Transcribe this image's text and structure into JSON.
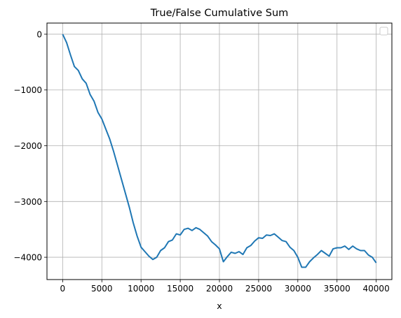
{
  "chart_data": {
    "type": "line",
    "title": "True/False Cumulative Sum",
    "xlabel": "x",
    "ylabel": "",
    "xlim": [
      -2000,
      42000
    ],
    "ylim": [
      -4400,
      200
    ],
    "xticks": [
      0,
      5000,
      10000,
      15000,
      20000,
      25000,
      30000,
      35000,
      40000
    ],
    "yticks": [
      0,
      -1000,
      -2000,
      -3000,
      -4000
    ],
    "grid": true,
    "legend": {
      "placement": "top-right",
      "entries": []
    },
    "colors": {
      "line": "#1f77b4",
      "grid": "#b0b0b0",
      "axes": "#000000"
    },
    "series": [
      {
        "x": [
          0,
          500,
          1000,
          1500,
          2000,
          2500,
          3000,
          3500,
          4000,
          4500,
          5000,
          5500,
          6000,
          6500,
          7000,
          7500,
          8000,
          8500,
          9000,
          9500,
          10000,
          10500,
          11000,
          11500,
          12000,
          12500,
          13000,
          13500,
          14000,
          14500,
          15000,
          15500,
          16000,
          16500,
          17000,
          17500,
          18000,
          18500,
          19000,
          19500,
          20000,
          20500,
          21000,
          21500,
          22000,
          22500,
          23000,
          23500,
          24000,
          24500,
          25000,
          25500,
          26000,
          26500,
          27000,
          27500,
          28000,
          28500,
          29000,
          29500,
          30000,
          30500,
          31000,
          31500,
          32000,
          32500,
          33000,
          33500,
          34000,
          34500,
          35000,
          35500,
          36000,
          36500,
          37000,
          37500,
          38000,
          38500,
          39000,
          39500,
          40000
        ],
        "values": [
          0,
          -150,
          -370,
          -580,
          -650,
          -800,
          -880,
          -1080,
          -1200,
          -1400,
          -1520,
          -1700,
          -1880,
          -2100,
          -2350,
          -2600,
          -2850,
          -3100,
          -3380,
          -3620,
          -3820,
          -3900,
          -3980,
          -4040,
          -4000,
          -3880,
          -3830,
          -3720,
          -3690,
          -3580,
          -3600,
          -3500,
          -3480,
          -3520,
          -3470,
          -3500,
          -3560,
          -3620,
          -3720,
          -3780,
          -3850,
          -4080,
          -3990,
          -3910,
          -3930,
          -3900,
          -3950,
          -3830,
          -3790,
          -3710,
          -3650,
          -3660,
          -3600,
          -3610,
          -3580,
          -3640,
          -3700,
          -3720,
          -3820,
          -3880,
          -4000,
          -4180,
          -4180,
          -4080,
          -4010,
          -3950,
          -3880,
          -3930,
          -3980,
          -3850,
          -3830,
          -3830,
          -3800,
          -3860,
          -3800,
          -3850,
          -3880,
          -3880,
          -3960,
          -4000,
          -4100
        ]
      }
    ]
  }
}
